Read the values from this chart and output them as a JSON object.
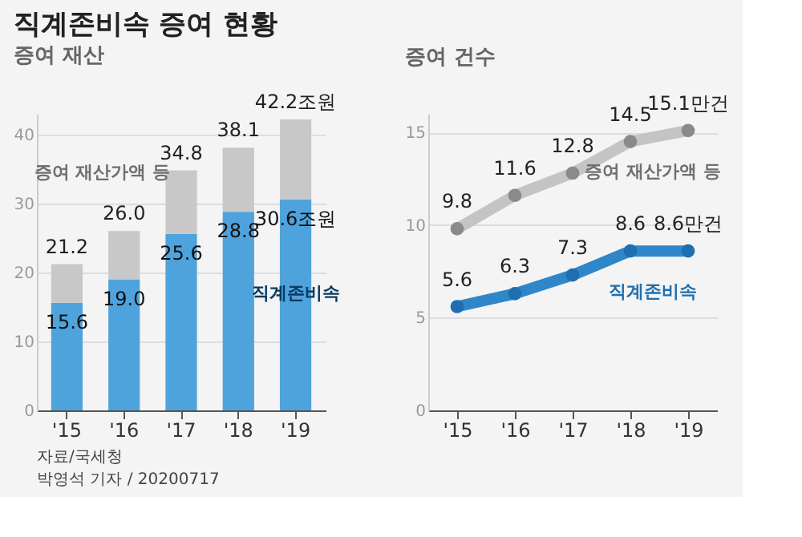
{
  "chart_data": [
    {
      "type": "bar",
      "title": "증여 재산",
      "stacked": true,
      "categories": [
        "'15",
        "'16",
        "'17",
        "'18",
        "'19"
      ],
      "series": [
        {
          "name": "직계존비속",
          "color": "#4fa3dc",
          "values": [
            15.6,
            19.0,
            25.6,
            28.8,
            30.6
          ],
          "value_labels": [
            "15.6",
            "19.0",
            "25.6",
            "28.8",
            "30.6조원"
          ]
        },
        {
          "name": "증여 재산가액 등",
          "color": "#c8c8c8",
          "values": [
            5.6,
            7.0,
            9.2,
            9.3,
            11.6
          ]
        }
      ],
      "totals": [
        "21.2",
        "26.0",
        "34.8",
        "38.1",
        "42.2조원"
      ],
      "ylim": [
        0,
        43
      ],
      "yticks": [
        0,
        10,
        20,
        30,
        40
      ],
      "grid": "y",
      "legend": false
    },
    {
      "type": "line",
      "title": "증여 건수",
      "categories": [
        "'15",
        "'16",
        "'17",
        "'18",
        "'19"
      ],
      "marker": "circle",
      "line_style": "solid",
      "series": [
        {
          "name": "증여 재산가액 등",
          "color": "#c4c4c4",
          "values": [
            9.8,
            11.6,
            12.8,
            14.5,
            15.1
          ],
          "value_labels": [
            "9.8",
            "11.6",
            "12.8",
            "14.5",
            "15.1만건"
          ]
        },
        {
          "name": "직계존비속",
          "color": "#2f86c8",
          "values": [
            5.6,
            6.3,
            7.3,
            8.6,
            8.6
          ],
          "value_labels": [
            "5.6",
            "6.3",
            "7.3",
            "8.6",
            "8.6만건"
          ]
        }
      ],
      "ylim": [
        0,
        16
      ],
      "yticks": [
        0,
        5,
        10,
        15
      ],
      "grid": "y",
      "legend": false,
      "annotations": [
        "직계존비속 증여 현황",
        "자료/국세청",
        "박영석 기자 / 20200717"
      ]
    }
  ]
}
